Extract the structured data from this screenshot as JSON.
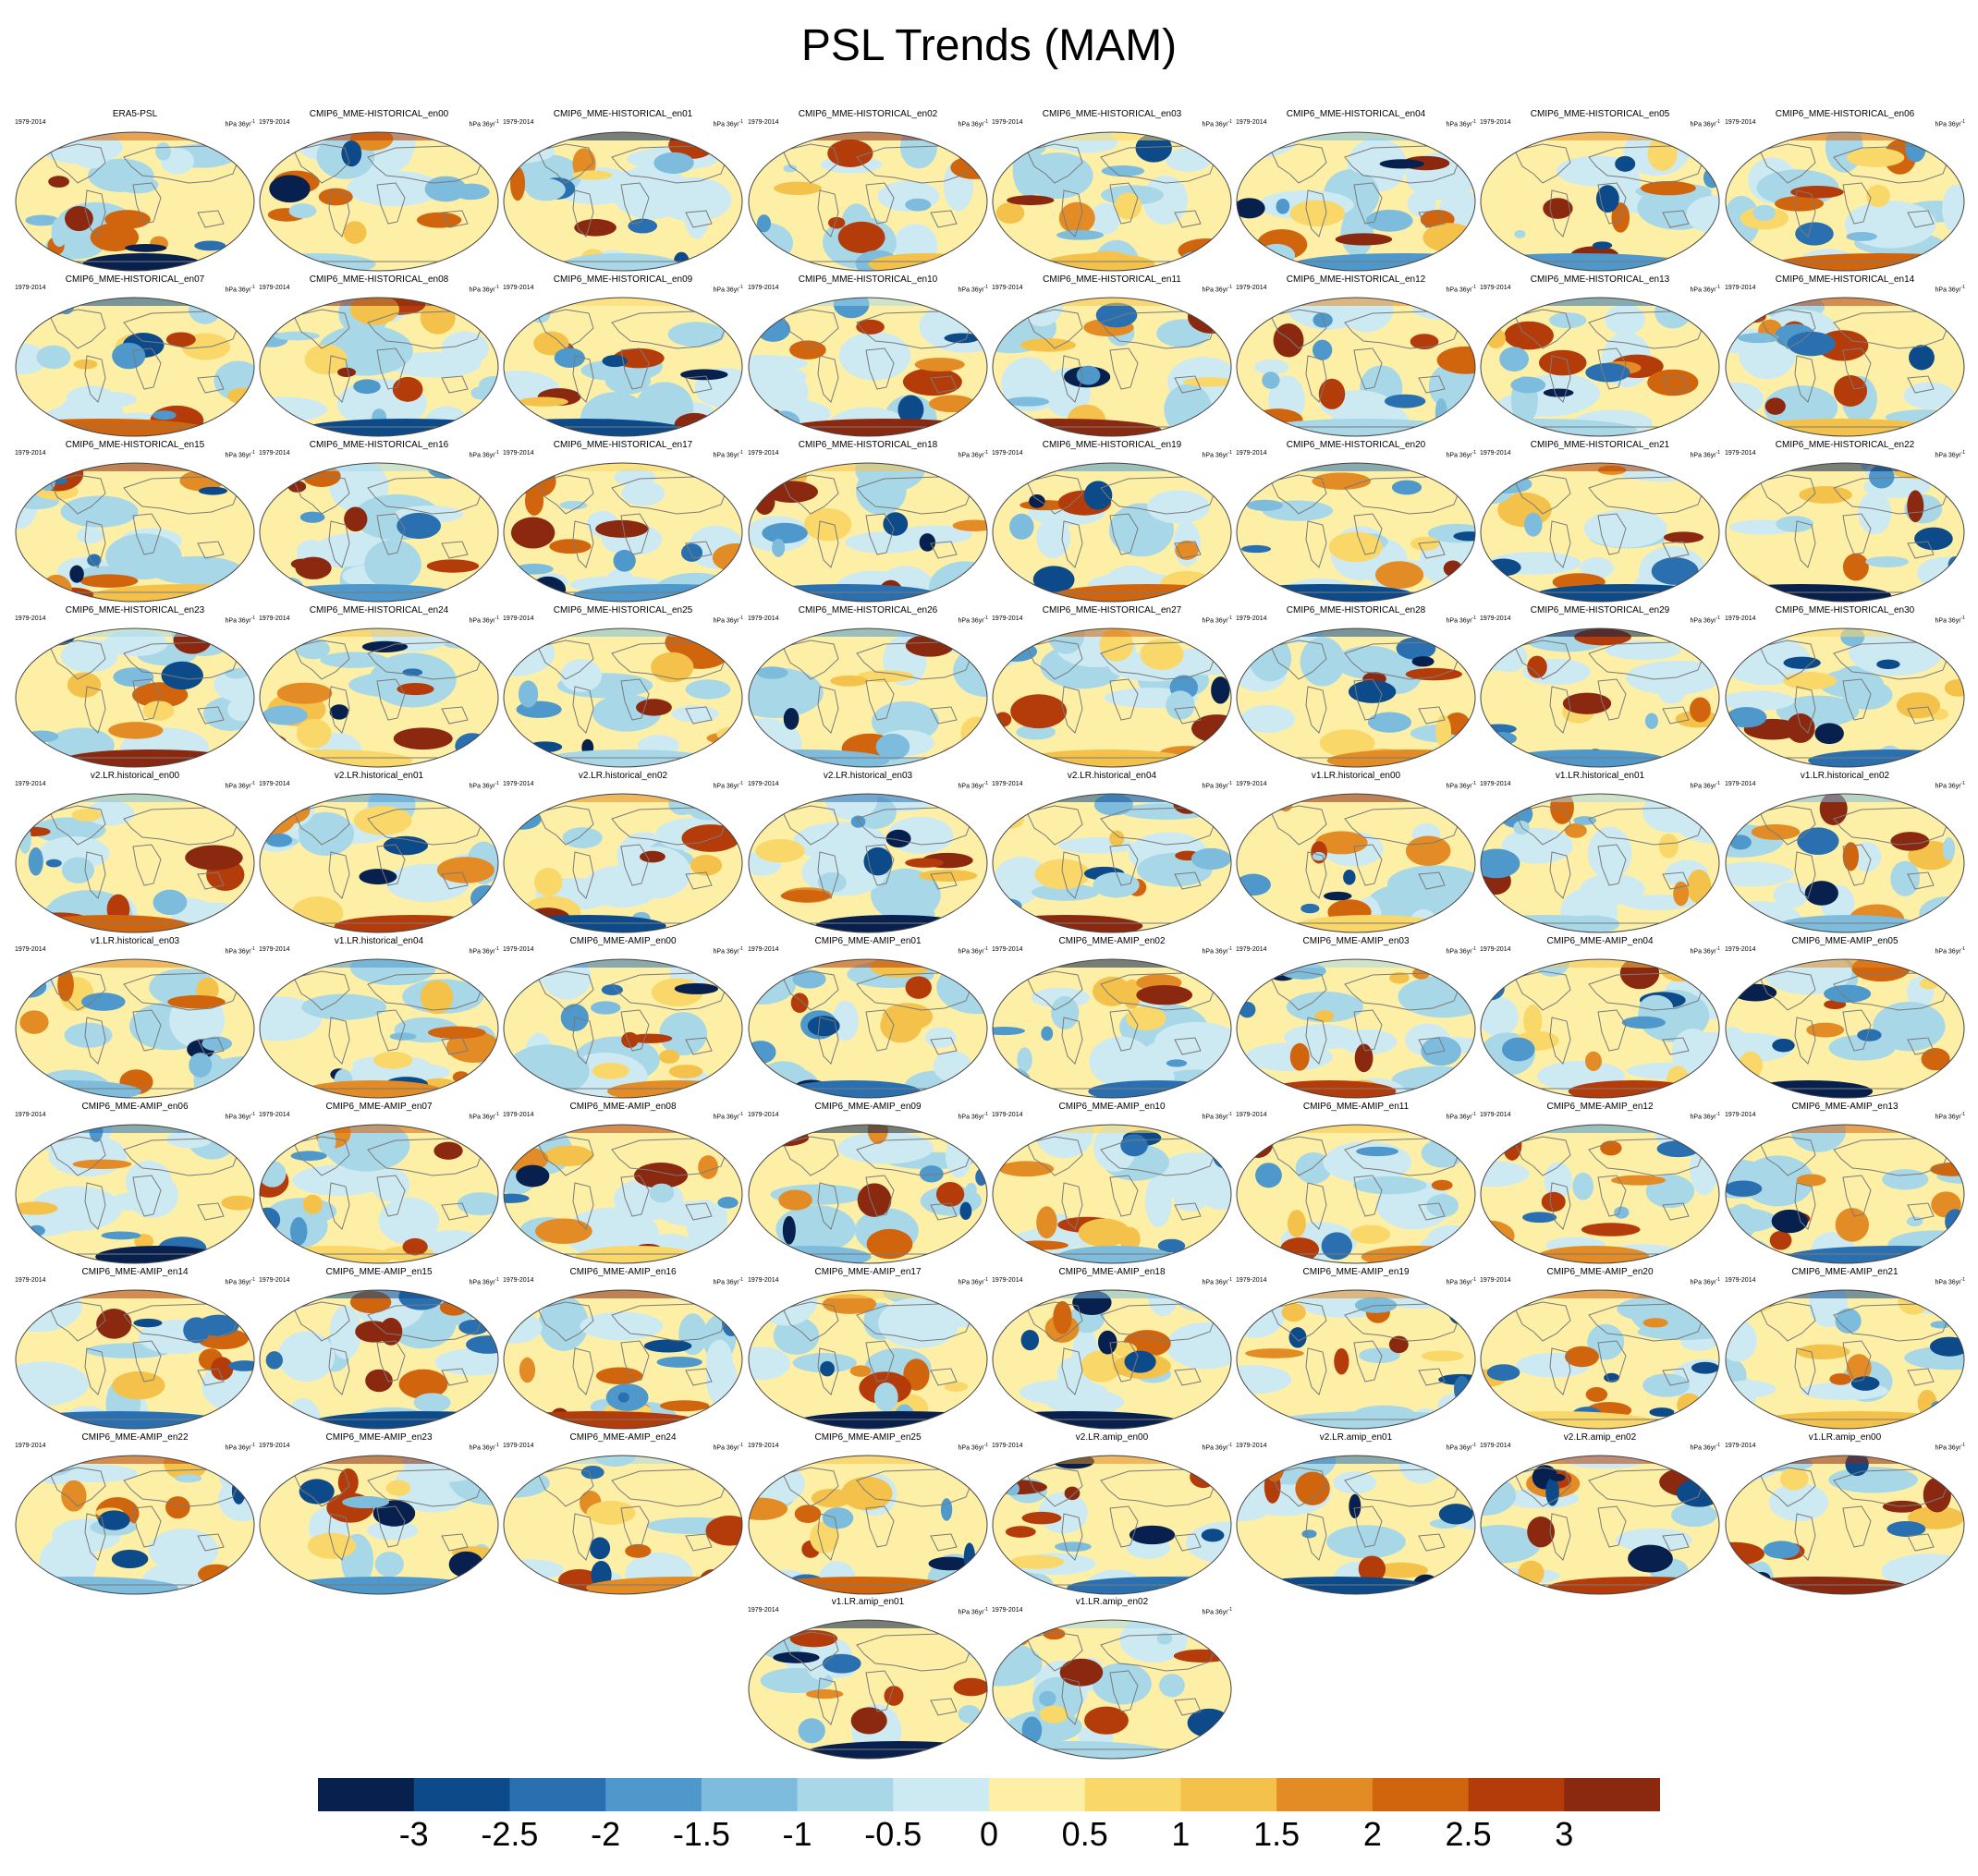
{
  "page": {
    "title": "PSL Trends (MAM)"
  },
  "panel_common": {
    "period": "1979-2014",
    "units": "hPa 36yr",
    "units_exp": "-1"
  },
  "panels": [
    "ERA5-PSL",
    "CMIP6_MME-HISTORICAL_en00",
    "CMIP6_MME-HISTORICAL_en01",
    "CMIP6_MME-HISTORICAL_en02",
    "CMIP6_MME-HISTORICAL_en03",
    "CMIP6_MME-HISTORICAL_en04",
    "CMIP6_MME-HISTORICAL_en05",
    "CMIP6_MME-HISTORICAL_en06",
    "CMIP6_MME-HISTORICAL_en07",
    "CMIP6_MME-HISTORICAL_en08",
    "CMIP6_MME-HISTORICAL_en09",
    "CMIP6_MME-HISTORICAL_en10",
    "CMIP6_MME-HISTORICAL_en11",
    "CMIP6_MME-HISTORICAL_en12",
    "CMIP6_MME-HISTORICAL_en13",
    "CMIP6_MME-HISTORICAL_en14",
    "CMIP6_MME-HISTORICAL_en15",
    "CMIP6_MME-HISTORICAL_en16",
    "CMIP6_MME-HISTORICAL_en17",
    "CMIP6_MME-HISTORICAL_en18",
    "CMIP6_MME-HISTORICAL_en19",
    "CMIP6_MME-HISTORICAL_en20",
    "CMIP6_MME-HISTORICAL_en21",
    "CMIP6_MME-HISTORICAL_en22",
    "CMIP6_MME-HISTORICAL_en23",
    "CMIP6_MME-HISTORICAL_en24",
    "CMIP6_MME-HISTORICAL_en25",
    "CMIP6_MME-HISTORICAL_en26",
    "CMIP6_MME-HISTORICAL_en27",
    "CMIP6_MME-HISTORICAL_en28",
    "CMIP6_MME-HISTORICAL_en29",
    "CMIP6_MME-HISTORICAL_en30",
    "v2.LR.historical_en00",
    "v2.LR.historical_en01",
    "v2.LR.historical_en02",
    "v2.LR.historical_en03",
    "v2.LR.historical_en04",
    "v1.LR.historical_en00",
    "v1.LR.historical_en01",
    "v1.LR.historical_en02",
    "v1.LR.historical_en03",
    "v1.LR.historical_en04",
    "CMIP6_MME-AMIP_en00",
    "CMIP6_MME-AMIP_en01",
    "CMIP6_MME-AMIP_en02",
    "CMIP6_MME-AMIP_en03",
    "CMIP6_MME-AMIP_en04",
    "CMIP6_MME-AMIP_en05",
    "CMIP6_MME-AMIP_en06",
    "CMIP6_MME-AMIP_en07",
    "CMIP6_MME-AMIP_en08",
    "CMIP6_MME-AMIP_en09",
    "CMIP6_MME-AMIP_en10",
    "CMIP6_MME-AMIP_en11",
    "CMIP6_MME-AMIP_en12",
    "CMIP6_MME-AMIP_en13",
    "CMIP6_MME-AMIP_en14",
    "CMIP6_MME-AMIP_en15",
    "CMIP6_MME-AMIP_en16",
    "CMIP6_MME-AMIP_en17",
    "CMIP6_MME-AMIP_en18",
    "CMIP6_MME-AMIP_en19",
    "CMIP6_MME-AMIP_en20",
    "CMIP6_MME-AMIP_en21",
    "CMIP6_MME-AMIP_en22",
    "CMIP6_MME-AMIP_en23",
    "CMIP6_MME-AMIP_en24",
    "CMIP6_MME-AMIP_en25",
    "v2.LR.amip_en00",
    "v2.LR.amip_en01",
    "v2.LR.amip_en02",
    "v1.LR.amip_en00",
    "v1.LR.amip_en01",
    "v1.LR.amip_en02"
  ],
  "chart_data": {
    "type": "heatmap",
    "title": "PSL Trends (MAM)",
    "projection": "global map (Robinson-like ellipse)",
    "colorbar": {
      "levels": [
        -3,
        -2.5,
        -2,
        -1.5,
        -1,
        -0.5,
        0,
        0.5,
        1,
        1.5,
        2,
        2.5,
        3
      ],
      "tick_labels": [
        "-3",
        "-2.5",
        "-2",
        "-1.5",
        "-1",
        "-0.5",
        "0",
        "0.5",
        "1",
        "1.5",
        "2",
        "2.5",
        "3"
      ],
      "colors": [
        "#08204e",
        "#0d4a8a",
        "#2a70b0",
        "#4e98cc",
        "#7dbcdd",
        "#a8d8e8",
        "#cdeaf3",
        "#fdf0a6",
        "#fad769",
        "#f4c24a",
        "#e38b24",
        "#d1650e",
        "#b33c0a",
        "#8a2810"
      ],
      "placement": "bottom"
    }
  }
}
